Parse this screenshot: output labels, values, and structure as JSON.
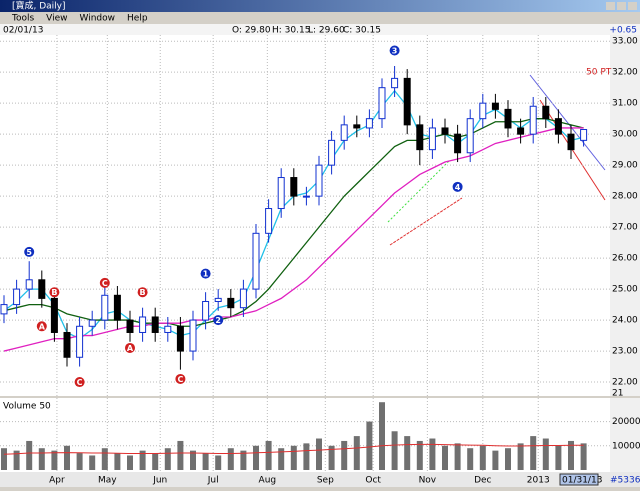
{
  "window": {
    "title": "[寶成, Daily]",
    "menu": [
      "Tools",
      "View",
      "Window",
      "Help"
    ]
  },
  "info": {
    "date": "02/01/13",
    "open": "O: 29.80",
    "high": "H: 30.15",
    "low": "L: 29.60",
    "close": "C: 30.15",
    "change": "+0.65"
  },
  "chart_data": [
    {
      "type": "candlestick",
      "categories": [
        null,
        null,
        null,
        null,
        null,
        null,
        null,
        null,
        null,
        null,
        null,
        null,
        null,
        null,
        null,
        null,
        null,
        null,
        null,
        null,
        null,
        null,
        null,
        null,
        null,
        null,
        null,
        null,
        null,
        null,
        null,
        null,
        null,
        null,
        null,
        null,
        null,
        null,
        null,
        null,
        null,
        null,
        null,
        null,
        null,
        null,
        null
      ],
      "open": [
        24.2,
        24.5,
        25.0,
        25.3,
        24.7,
        23.6,
        22.8,
        23.8,
        24.0,
        24.8,
        24.0,
        23.6,
        24.1,
        23.6,
        23.8,
        23.0,
        24.0,
        24.6,
        24.7,
        24.4,
        25.0,
        26.8,
        27.6,
        28.6,
        28.0,
        28.0,
        29.0,
        29.8,
        30.3,
        30.2,
        30.5,
        31.5,
        31.8,
        30.3,
        29.5,
        30.2,
        30.0,
        29.4,
        30.5,
        31.0,
        30.8,
        30.2,
        30.0,
        30.9,
        30.5,
        30.0,
        29.8
      ],
      "high": [
        24.8,
        25.3,
        25.9,
        25.6,
        25.0,
        23.9,
        24.1,
        24.3,
        25.1,
        25.1,
        24.3,
        24.4,
        24.4,
        24.1,
        24.1,
        24.3,
        24.9,
        25.0,
        25.0,
        25.3,
        27.1,
        27.9,
        28.9,
        28.9,
        28.3,
        29.3,
        30.1,
        30.6,
        30.6,
        30.8,
        31.8,
        32.2,
        32.1,
        30.6,
        30.5,
        30.5,
        30.3,
        30.8,
        31.3,
        31.3,
        31.1,
        30.5,
        31.2,
        31.2,
        30.8,
        30.3,
        30.15
      ],
      "low": [
        23.9,
        24.2,
        24.7,
        24.4,
        23.3,
        22.5,
        22.5,
        23.5,
        23.7,
        23.7,
        23.3,
        23.3,
        23.3,
        23.3,
        22.4,
        22.7,
        23.7,
        24.3,
        24.1,
        24.1,
        24.7,
        26.5,
        27.3,
        27.7,
        27.7,
        27.7,
        28.7,
        29.5,
        29.9,
        29.9,
        30.2,
        31.2,
        30.0,
        29.0,
        29.2,
        29.7,
        29.1,
        29.1,
        30.2,
        30.5,
        29.9,
        29.7,
        29.7,
        30.2,
        29.7,
        29.2,
        29.6
      ],
      "close": [
        24.5,
        25.0,
        25.3,
        24.7,
        23.6,
        22.8,
        23.8,
        24.0,
        24.8,
        24.0,
        23.6,
        24.1,
        23.6,
        23.8,
        23.0,
        24.0,
        24.6,
        24.7,
        24.4,
        25.0,
        26.8,
        27.6,
        28.6,
        28.0,
        28.0,
        29.0,
        29.8,
        30.3,
        30.2,
        30.5,
        31.5,
        31.8,
        30.3,
        29.5,
        30.2,
        30.0,
        29.4,
        30.5,
        31.0,
        30.8,
        30.2,
        30.0,
        30.9,
        30.5,
        30.0,
        29.5,
        30.15
      ],
      "up_color": "#1030d0",
      "down_color": "#000000",
      "series": [
        {
          "color": "#20c0e8",
          "values": [
            24.3,
            24.6,
            25.0,
            25.0,
            24.5,
            23.6,
            23.4,
            23.7,
            24.2,
            24.3,
            24.0,
            23.9,
            23.8,
            23.7,
            23.5,
            23.6,
            24.0,
            24.4,
            24.5,
            24.7,
            25.6,
            26.6,
            27.6,
            28.0,
            28.1,
            28.5,
            29.2,
            29.8,
            30.1,
            30.3,
            30.9,
            31.4,
            30.9,
            30.0,
            29.9,
            30.0,
            29.7,
            30.0,
            30.6,
            30.8,
            30.5,
            30.2,
            30.5,
            30.5,
            30.2,
            29.8,
            29.9
          ]
        },
        {
          "color": "#106010",
          "values": [
            24.3,
            24.4,
            24.5,
            24.5,
            24.4,
            24.2,
            24.1,
            24.0,
            24.0,
            24.0,
            24.0,
            23.9,
            23.9,
            23.9,
            23.8,
            23.8,
            23.9,
            24.0,
            24.1,
            24.3,
            24.6,
            25.0,
            25.5,
            26.0,
            26.5,
            27.0,
            27.5,
            28.0,
            28.4,
            28.8,
            29.2,
            29.6,
            29.8,
            29.8,
            29.9,
            30.0,
            29.9,
            30.0,
            30.2,
            30.4,
            30.4,
            30.4,
            30.5,
            30.5,
            30.4,
            30.3,
            30.2
          ]
        },
        {
          "color": "#e020c0",
          "values": [
            23.0,
            23.1,
            23.2,
            23.3,
            23.4,
            23.4,
            23.5,
            23.5,
            23.6,
            23.7,
            23.8,
            23.8,
            23.9,
            23.9,
            23.9,
            24.0,
            24.0,
            24.1,
            24.1,
            24.2,
            24.3,
            24.5,
            24.7,
            25.0,
            25.3,
            25.7,
            26.1,
            26.5,
            26.9,
            27.3,
            27.7,
            28.1,
            28.4,
            28.7,
            28.9,
            29.1,
            29.2,
            29.3,
            29.5,
            29.7,
            29.8,
            29.9,
            30.0,
            30.1,
            30.2,
            30.2,
            30.2
          ]
        }
      ],
      "ylim": [
        21.55,
        33.2
      ],
      "yticks": [
        {
          "value": 22,
          "label": "22.00"
        },
        {
          "value": 23,
          "label": "23.00"
        },
        {
          "value": 24,
          "label": "24.00"
        },
        {
          "value": 25,
          "label": "25.00"
        },
        {
          "value": 26,
          "label": "26.00"
        },
        {
          "value": 27,
          "label": "27.00"
        },
        {
          "value": 28,
          "label": "28.00"
        },
        {
          "value": 29,
          "label": "29.00"
        },
        {
          "value": 30,
          "label": "30.00"
        },
        {
          "value": 31,
          "label": "31.00"
        },
        {
          "value": 32,
          "label": "32.00"
        },
        {
          "value": 33,
          "label": "33.00"
        }
      ],
      "bottom_label": "21",
      "xticks": [
        {
          "value": 4.2,
          "label": "Apr"
        },
        {
          "value": 8.2,
          "label": "May"
        },
        {
          "value": 12.4,
          "label": "Jun"
        },
        {
          "value": 16.6,
          "label": "Jul"
        },
        {
          "value": 20.9,
          "label": "Aug"
        },
        {
          "value": 25.5,
          "label": "Sep"
        },
        {
          "value": 29.3,
          "label": "Oct"
        },
        {
          "value": 33.6,
          "label": "Nov"
        },
        {
          "value": 38.0,
          "label": "Dec"
        },
        {
          "value": 42.4,
          "label": "2013"
        }
      ],
      "grid": true,
      "marker": {
        "label": "50 PT",
        "value": 32.0
      },
      "annotations": [
        {
          "label": "5",
          "index": 2,
          "y": 26.2,
          "color": "#1030c0"
        },
        {
          "label": "A",
          "index": 3,
          "y": 23.8,
          "color": "#d02020"
        },
        {
          "label": "B",
          "index": 4,
          "y": 24.9,
          "color": "#d02020"
        },
        {
          "label": "C",
          "index": 6,
          "y": 22.0,
          "color": "#d02020"
        },
        {
          "label": "C",
          "index": 8,
          "y": 25.2,
          "color": "#d02020"
        },
        {
          "label": "A",
          "index": 10,
          "y": 23.1,
          "color": "#d02020"
        },
        {
          "label": "B",
          "index": 11,
          "y": 24.9,
          "color": "#d02020"
        },
        {
          "label": "C",
          "index": 14,
          "y": 22.1,
          "color": "#d02020"
        },
        {
          "label": "1",
          "index": 16,
          "y": 25.5,
          "color": "#1030c0"
        },
        {
          "label": "2",
          "index": 17,
          "y": 24.0,
          "color": "#1030c0"
        },
        {
          "label": "3",
          "index": 31,
          "y": 32.7,
          "color": "#1030c0"
        },
        {
          "label": "4",
          "index": 36,
          "y": 28.3,
          "color": "#1030c0"
        }
      ]
    },
    {
      "type": "bar",
      "title": "Volume 50",
      "color": "#707070",
      "values": [
        9000,
        8000,
        12000,
        9000,
        8000,
        10000,
        7000,
        6000,
        9000,
        7000,
        6000,
        8000,
        7000,
        9000,
        12000,
        8000,
        7000,
        6000,
        9000,
        8000,
        10000,
        12000,
        9000,
        10000,
        11000,
        13000,
        10000,
        12000,
        14000,
        20000,
        28000,
        16000,
        14000,
        12000,
        13000,
        10000,
        11000,
        9000,
        10000,
        8000,
        9000,
        11000,
        14000,
        13000,
        10000,
        12000,
        11000
      ],
      "series": [
        {
          "color": "#e03030",
          "values": [
            6500,
            6700,
            7000,
            7000,
            7100,
            7200,
            7100,
            7000,
            7000,
            6900,
            6800,
            6800,
            6800,
            6900,
            7000,
            7000,
            6900,
            6800,
            6800,
            6900,
            7100,
            7300,
            7500,
            7700,
            8000,
            8200,
            8500,
            8800,
            9100,
            9500,
            10000,
            10300,
            10500,
            10600,
            10600,
            10500,
            10400,
            10300,
            10200,
            10000,
            9900,
            9900,
            10000,
            10100,
            10100,
            10200,
            10200
          ]
        }
      ],
      "ylim": [
        0,
        28500
      ],
      "yticks": [
        10000,
        20000
      ]
    }
  ],
  "status": {
    "date": "01/31/13",
    "count": "#5336"
  }
}
